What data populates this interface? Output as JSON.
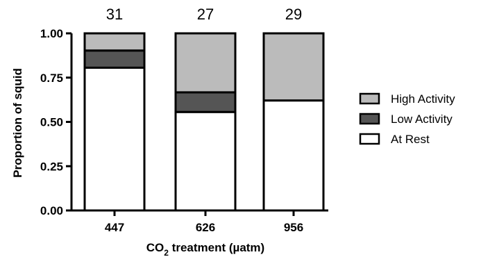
{
  "chart_data": {
    "type": "bar",
    "stacked": true,
    "categories": [
      "447",
      "626",
      "956"
    ],
    "counts": [
      "31",
      "27",
      "29"
    ],
    "series": [
      {
        "name": "At Rest",
        "color": "#ffffff",
        "values": [
          0.806,
          0.556,
          0.621
        ]
      },
      {
        "name": "Low Activity",
        "color": "#555555",
        "values": [
          0.097,
          0.111,
          0.0
        ]
      },
      {
        "name": "High Activity",
        "color": "#bbbbbb",
        "values": [
          0.097,
          0.333,
          0.379
        ]
      }
    ],
    "legend_order": [
      "High Activity",
      "Low Activity",
      "At Rest"
    ],
    "legend_position": "right",
    "ylabel": "Proportion of squid",
    "xlabel": {
      "prefix": "CO",
      "subscript": "2",
      "suffix": " treatment (µatm)"
    },
    "ylim": [
      0,
      1
    ],
    "yticks": [
      "0.00",
      "0.25",
      "0.50",
      "0.75",
      "1.00"
    ],
    "grid": false
  }
}
